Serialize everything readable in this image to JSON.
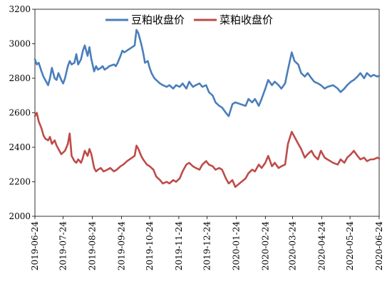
{
  "chart_data": {
    "type": "line",
    "title": "",
    "xlabel": "",
    "ylabel": "",
    "ylim": [
      2000,
      3200
    ],
    "yticks": [
      2000,
      2200,
      2400,
      2600,
      2800,
      3000,
      3200
    ],
    "xlim": [
      "2019-06-24",
      "2020-06-24"
    ],
    "xticks": [
      "2019-06-24",
      "2019-07-24",
      "2019-08-24",
      "2019-09-24",
      "2019-10-24",
      "2019-11-24",
      "2019-12-24",
      "2020-01-24",
      "2020-02-24",
      "2020-03-24",
      "2020-04-24",
      "2020-05-24",
      "2020-06-24"
    ],
    "grid": false,
    "legend_position": "top",
    "series": [
      {
        "name": "豆粕收盘价",
        "color": "#4a7ebb",
        "points": [
          [
            "2019-06-24",
            2910
          ],
          [
            "2019-06-26",
            2880
          ],
          [
            "2019-06-28",
            2890
          ],
          [
            "2019-07-01",
            2840
          ],
          [
            "2019-07-03",
            2810
          ],
          [
            "2019-07-05",
            2790
          ],
          [
            "2019-07-08",
            2760
          ],
          [
            "2019-07-10",
            2800
          ],
          [
            "2019-07-12",
            2860
          ],
          [
            "2019-07-15",
            2800
          ],
          [
            "2019-07-17",
            2790
          ],
          [
            "2019-07-19",
            2830
          ],
          [
            "2019-07-22",
            2790
          ],
          [
            "2019-07-24",
            2770
          ],
          [
            "2019-07-26",
            2800
          ],
          [
            "2019-07-29",
            2870
          ],
          [
            "2019-07-31",
            2900
          ],
          [
            "2019-08-02",
            2880
          ],
          [
            "2019-08-05",
            2890
          ],
          [
            "2019-08-07",
            2940
          ],
          [
            "2019-08-09",
            2880
          ],
          [
            "2019-08-12",
            2910
          ],
          [
            "2019-08-14",
            2960
          ],
          [
            "2019-08-16",
            2990
          ],
          [
            "2019-08-19",
            2930
          ],
          [
            "2019-08-21",
            2980
          ],
          [
            "2019-08-23",
            2910
          ],
          [
            "2019-08-26",
            2840
          ],
          [
            "2019-08-28",
            2870
          ],
          [
            "2019-08-30",
            2850
          ],
          [
            "2019-09-02",
            2860
          ],
          [
            "2019-09-04",
            2870
          ],
          [
            "2019-09-06",
            2850
          ],
          [
            "2019-09-09",
            2860
          ],
          [
            "2019-09-11",
            2870
          ],
          [
            "2019-09-16",
            2880
          ],
          [
            "2019-09-18",
            2870
          ],
          [
            "2019-09-20",
            2890
          ],
          [
            "2019-09-23",
            2930
          ],
          [
            "2019-09-25",
            2960
          ],
          [
            "2019-09-27",
            2950
          ],
          [
            "2019-10-08",
            2990
          ],
          [
            "2019-10-10",
            3080
          ],
          [
            "2019-10-12",
            3060
          ],
          [
            "2019-10-15",
            3000
          ],
          [
            "2019-10-17",
            2950
          ],
          [
            "2019-10-19",
            2890
          ],
          [
            "2019-10-22",
            2900
          ],
          [
            "2019-10-24",
            2860
          ],
          [
            "2019-10-26",
            2830
          ],
          [
            "2019-10-29",
            2800
          ],
          [
            "2019-10-31",
            2790
          ],
          [
            "2019-11-04",
            2770
          ],
          [
            "2019-11-07",
            2760
          ],
          [
            "2019-11-11",
            2750
          ],
          [
            "2019-11-14",
            2760
          ],
          [
            "2019-11-18",
            2740
          ],
          [
            "2019-11-21",
            2760
          ],
          [
            "2019-11-25",
            2750
          ],
          [
            "2019-11-28",
            2770
          ],
          [
            "2019-12-02",
            2740
          ],
          [
            "2019-12-05",
            2780
          ],
          [
            "2019-12-09",
            2750
          ],
          [
            "2019-12-12",
            2760
          ],
          [
            "2019-12-16",
            2770
          ],
          [
            "2019-12-19",
            2750
          ],
          [
            "2019-12-23",
            2760
          ],
          [
            "2019-12-26",
            2720
          ],
          [
            "2019-12-30",
            2700
          ],
          [
            "2020-01-02",
            2660
          ],
          [
            "2020-01-06",
            2640
          ],
          [
            "2020-01-09",
            2630
          ],
          [
            "2020-01-13",
            2600
          ],
          [
            "2020-01-16",
            2580
          ],
          [
            "2020-01-20",
            2650
          ],
          [
            "2020-01-23",
            2660
          ],
          [
            "2020-02-03",
            2640
          ],
          [
            "2020-02-06",
            2680
          ],
          [
            "2020-02-10",
            2660
          ],
          [
            "2020-02-13",
            2680
          ],
          [
            "2020-02-17",
            2640
          ],
          [
            "2020-02-20",
            2680
          ],
          [
            "2020-02-24",
            2740
          ],
          [
            "2020-02-27",
            2790
          ],
          [
            "2020-03-02",
            2760
          ],
          [
            "2020-03-05",
            2780
          ],
          [
            "2020-03-09",
            2760
          ],
          [
            "2020-03-12",
            2740
          ],
          [
            "2020-03-16",
            2770
          ],
          [
            "2020-03-19",
            2850
          ],
          [
            "2020-03-23",
            2950
          ],
          [
            "2020-03-26",
            2900
          ],
          [
            "2020-03-30",
            2880
          ],
          [
            "2020-04-02",
            2830
          ],
          [
            "2020-04-06",
            2810
          ],
          [
            "2020-04-09",
            2830
          ],
          [
            "2020-04-13",
            2800
          ],
          [
            "2020-04-16",
            2780
          ],
          [
            "2020-04-20",
            2770
          ],
          [
            "2020-04-23",
            2760
          ],
          [
            "2020-04-27",
            2740
          ],
          [
            "2020-04-30",
            2750
          ],
          [
            "2020-05-06",
            2760
          ],
          [
            "2020-05-11",
            2740
          ],
          [
            "2020-05-14",
            2720
          ],
          [
            "2020-05-18",
            2740
          ],
          [
            "2020-05-21",
            2760
          ],
          [
            "2020-05-25",
            2780
          ],
          [
            "2020-05-28",
            2790
          ],
          [
            "2020-06-01",
            2810
          ],
          [
            "2020-06-04",
            2830
          ],
          [
            "2020-06-08",
            2800
          ],
          [
            "2020-06-11",
            2830
          ],
          [
            "2020-06-15",
            2810
          ],
          [
            "2020-06-18",
            2820
          ],
          [
            "2020-06-22",
            2810
          ],
          [
            "2020-06-24",
            2815
          ]
        ]
      },
      {
        "name": "菜粕收盘价",
        "color": "#be4b48",
        "points": [
          [
            "2019-06-24",
            2580
          ],
          [
            "2019-06-26",
            2600
          ],
          [
            "2019-06-28",
            2550
          ],
          [
            "2019-07-01",
            2510
          ],
          [
            "2019-07-03",
            2470
          ],
          [
            "2019-07-05",
            2450
          ],
          [
            "2019-07-08",
            2440
          ],
          [
            "2019-07-10",
            2460
          ],
          [
            "2019-07-12",
            2420
          ],
          [
            "2019-07-15",
            2440
          ],
          [
            "2019-07-17",
            2410
          ],
          [
            "2019-07-19",
            2390
          ],
          [
            "2019-07-22",
            2360
          ],
          [
            "2019-07-24",
            2370
          ],
          [
            "2019-07-26",
            2380
          ],
          [
            "2019-07-29",
            2420
          ],
          [
            "2019-07-31",
            2480
          ],
          [
            "2019-08-02",
            2350
          ],
          [
            "2019-08-05",
            2320
          ],
          [
            "2019-08-07",
            2310
          ],
          [
            "2019-08-09",
            2330
          ],
          [
            "2019-08-12",
            2310
          ],
          [
            "2019-08-14",
            2340
          ],
          [
            "2019-08-16",
            2380
          ],
          [
            "2019-08-19",
            2350
          ],
          [
            "2019-08-21",
            2390
          ],
          [
            "2019-08-23",
            2360
          ],
          [
            "2019-08-26",
            2280
          ],
          [
            "2019-08-28",
            2260
          ],
          [
            "2019-08-30",
            2270
          ],
          [
            "2019-09-02",
            2280
          ],
          [
            "2019-09-05",
            2260
          ],
          [
            "2019-09-09",
            2270
          ],
          [
            "2019-09-12",
            2280
          ],
          [
            "2019-09-16",
            2260
          ],
          [
            "2019-09-19",
            2270
          ],
          [
            "2019-09-23",
            2290
          ],
          [
            "2019-09-26",
            2300
          ],
          [
            "2019-09-30",
            2320
          ],
          [
            "2019-10-08",
            2350
          ],
          [
            "2019-10-10",
            2410
          ],
          [
            "2019-10-12",
            2390
          ],
          [
            "2019-10-15",
            2350
          ],
          [
            "2019-10-17",
            2330
          ],
          [
            "2019-10-21",
            2300
          ],
          [
            "2019-10-24",
            2290
          ],
          [
            "2019-10-28",
            2270
          ],
          [
            "2019-10-31",
            2230
          ],
          [
            "2019-11-04",
            2210
          ],
          [
            "2019-11-07",
            2190
          ],
          [
            "2019-11-11",
            2200
          ],
          [
            "2019-11-14",
            2190
          ],
          [
            "2019-11-18",
            2210
          ],
          [
            "2019-11-21",
            2200
          ],
          [
            "2019-11-25",
            2220
          ],
          [
            "2019-11-28",
            2260
          ],
          [
            "2019-12-02",
            2300
          ],
          [
            "2019-12-05",
            2310
          ],
          [
            "2019-12-09",
            2290
          ],
          [
            "2019-12-12",
            2280
          ],
          [
            "2019-12-16",
            2270
          ],
          [
            "2019-12-19",
            2300
          ],
          [
            "2019-12-23",
            2320
          ],
          [
            "2019-12-26",
            2300
          ],
          [
            "2019-12-30",
            2290
          ],
          [
            "2020-01-02",
            2270
          ],
          [
            "2020-01-06",
            2280
          ],
          [
            "2020-01-09",
            2270
          ],
          [
            "2020-01-13",
            2220
          ],
          [
            "2020-01-16",
            2190
          ],
          [
            "2020-01-20",
            2210
          ],
          [
            "2020-01-23",
            2170
          ],
          [
            "2020-02-03",
            2220
          ],
          [
            "2020-02-06",
            2250
          ],
          [
            "2020-02-10",
            2270
          ],
          [
            "2020-02-13",
            2260
          ],
          [
            "2020-02-17",
            2300
          ],
          [
            "2020-02-20",
            2280
          ],
          [
            "2020-02-24",
            2310
          ],
          [
            "2020-02-27",
            2350
          ],
          [
            "2020-03-02",
            2290
          ],
          [
            "2020-03-05",
            2310
          ],
          [
            "2020-03-09",
            2280
          ],
          [
            "2020-03-12",
            2290
          ],
          [
            "2020-03-16",
            2300
          ],
          [
            "2020-03-19",
            2420
          ],
          [
            "2020-03-23",
            2490
          ],
          [
            "2020-03-26",
            2460
          ],
          [
            "2020-03-30",
            2420
          ],
          [
            "2020-04-02",
            2390
          ],
          [
            "2020-04-06",
            2340
          ],
          [
            "2020-04-09",
            2360
          ],
          [
            "2020-04-13",
            2380
          ],
          [
            "2020-04-16",
            2350
          ],
          [
            "2020-04-20",
            2330
          ],
          [
            "2020-04-23",
            2380
          ],
          [
            "2020-04-27",
            2340
          ],
          [
            "2020-04-30",
            2330
          ],
          [
            "2020-05-06",
            2310
          ],
          [
            "2020-05-11",
            2300
          ],
          [
            "2020-05-14",
            2330
          ],
          [
            "2020-05-18",
            2310
          ],
          [
            "2020-05-21",
            2340
          ],
          [
            "2020-05-25",
            2360
          ],
          [
            "2020-05-28",
            2380
          ],
          [
            "2020-06-01",
            2350
          ],
          [
            "2020-06-04",
            2330
          ],
          [
            "2020-06-08",
            2340
          ],
          [
            "2020-06-11",
            2320
          ],
          [
            "2020-06-15",
            2330
          ],
          [
            "2020-06-18",
            2330
          ],
          [
            "2020-06-22",
            2340
          ],
          [
            "2020-06-24",
            2335
          ]
        ]
      }
    ]
  }
}
